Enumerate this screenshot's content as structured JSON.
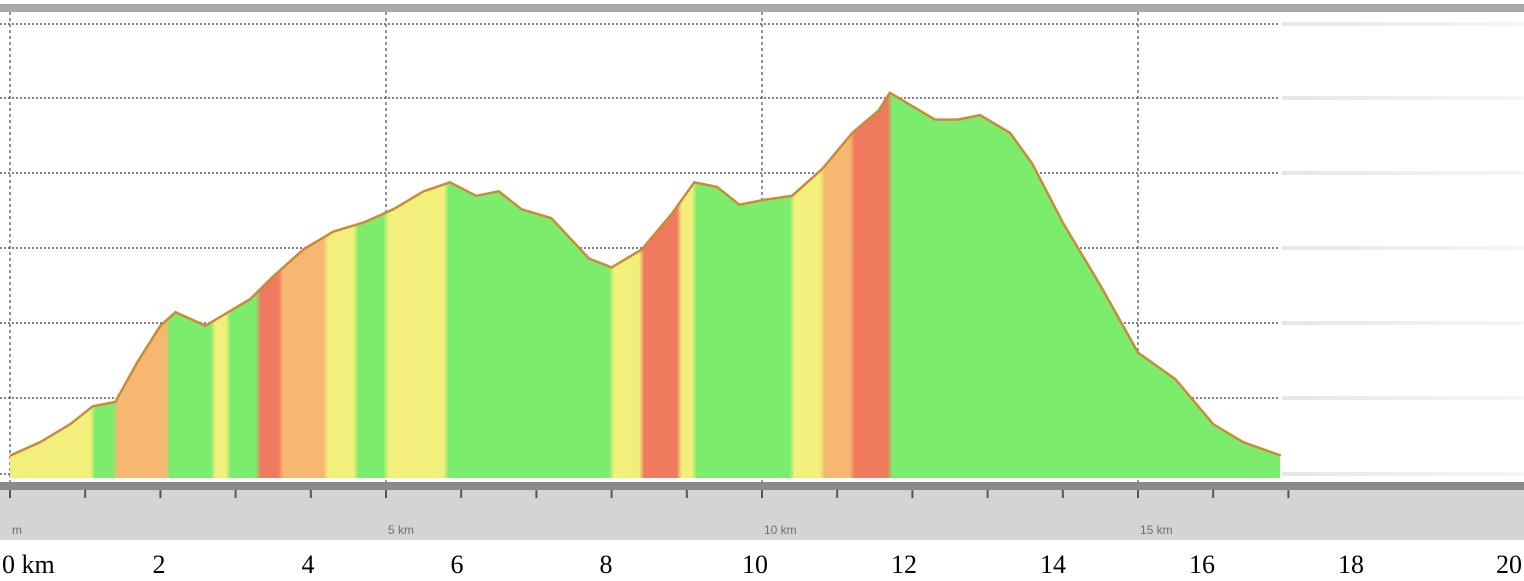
{
  "chart_data": {
    "type": "area",
    "title": "",
    "xlabel": "",
    "ylabel": "",
    "xlim": [
      0,
      20
    ],
    "grid": true,
    "inner_axis_ticks": [
      "m",
      "5 km",
      "10 km",
      "15 km"
    ],
    "outer_axis_ticks": [
      "0 km",
      "2",
      "4",
      "6",
      "8",
      "10",
      "12",
      "14",
      "16",
      "18",
      "20"
    ],
    "grade_colors": {
      "flat": "#7cec6c",
      "moderate": "#f2f07a",
      "steep": "#f6b870",
      "very_steep": "#ef7a5e"
    },
    "profile": [
      [
        0.0,
        0.05
      ],
      [
        0.4,
        0.08
      ],
      [
        0.8,
        0.12
      ],
      [
        1.1,
        0.16
      ],
      [
        1.4,
        0.17
      ],
      [
        1.7,
        0.26
      ],
      [
        2.0,
        0.34
      ],
      [
        2.2,
        0.37
      ],
      [
        2.6,
        0.34
      ],
      [
        2.9,
        0.37
      ],
      [
        3.2,
        0.4
      ],
      [
        3.5,
        0.45
      ],
      [
        3.9,
        0.51
      ],
      [
        4.3,
        0.55
      ],
      [
        4.7,
        0.57
      ],
      [
        5.1,
        0.6
      ],
      [
        5.5,
        0.64
      ],
      [
        5.85,
        0.66
      ],
      [
        6.2,
        0.63
      ],
      [
        6.5,
        0.64
      ],
      [
        6.8,
        0.6
      ],
      [
        7.2,
        0.58
      ],
      [
        7.7,
        0.49
      ],
      [
        8.0,
        0.47
      ],
      [
        8.4,
        0.51
      ],
      [
        8.8,
        0.59
      ],
      [
        9.1,
        0.66
      ],
      [
        9.4,
        0.65
      ],
      [
        9.7,
        0.61
      ],
      [
        10.0,
        0.62
      ],
      [
        10.4,
        0.63
      ],
      [
        10.8,
        0.69
      ],
      [
        11.2,
        0.77
      ],
      [
        11.55,
        0.82
      ],
      [
        11.7,
        0.86
      ],
      [
        12.0,
        0.83
      ],
      [
        12.3,
        0.8
      ],
      [
        12.6,
        0.8
      ],
      [
        12.9,
        0.81
      ],
      [
        13.3,
        0.77
      ],
      [
        13.6,
        0.7
      ],
      [
        14.0,
        0.57
      ],
      [
        14.5,
        0.43
      ],
      [
        15.0,
        0.28
      ],
      [
        15.5,
        0.22
      ],
      [
        16.0,
        0.12
      ],
      [
        16.4,
        0.08
      ],
      [
        16.9,
        0.05
      ]
    ],
    "grade_bands": [
      {
        "from": 0.0,
        "to": 1.1,
        "grade": "moderate"
      },
      {
        "from": 1.1,
        "to": 1.4,
        "grade": "flat"
      },
      {
        "from": 1.4,
        "to": 2.1,
        "grade": "steep"
      },
      {
        "from": 2.1,
        "to": 2.7,
        "grade": "flat"
      },
      {
        "from": 2.7,
        "to": 2.9,
        "grade": "moderate"
      },
      {
        "from": 2.9,
        "to": 3.3,
        "grade": "flat"
      },
      {
        "from": 3.3,
        "to": 3.6,
        "grade": "very_steep"
      },
      {
        "from": 3.6,
        "to": 4.2,
        "grade": "steep"
      },
      {
        "from": 4.2,
        "to": 4.6,
        "grade": "moderate"
      },
      {
        "from": 4.6,
        "to": 5.0,
        "grade": "flat"
      },
      {
        "from": 5.0,
        "to": 5.8,
        "grade": "moderate"
      },
      {
        "from": 5.8,
        "to": 8.0,
        "grade": "flat"
      },
      {
        "from": 8.0,
        "to": 8.4,
        "grade": "moderate"
      },
      {
        "from": 8.4,
        "to": 8.9,
        "grade": "very_steep"
      },
      {
        "from": 8.9,
        "to": 9.1,
        "grade": "moderate"
      },
      {
        "from": 9.1,
        "to": 10.4,
        "grade": "flat"
      },
      {
        "from": 10.4,
        "to": 10.8,
        "grade": "moderate"
      },
      {
        "from": 10.8,
        "to": 11.2,
        "grade": "steep"
      },
      {
        "from": 11.2,
        "to": 11.7,
        "grade": "very_steep"
      },
      {
        "from": 11.7,
        "to": 16.9,
        "grade": "flat"
      }
    ]
  }
}
